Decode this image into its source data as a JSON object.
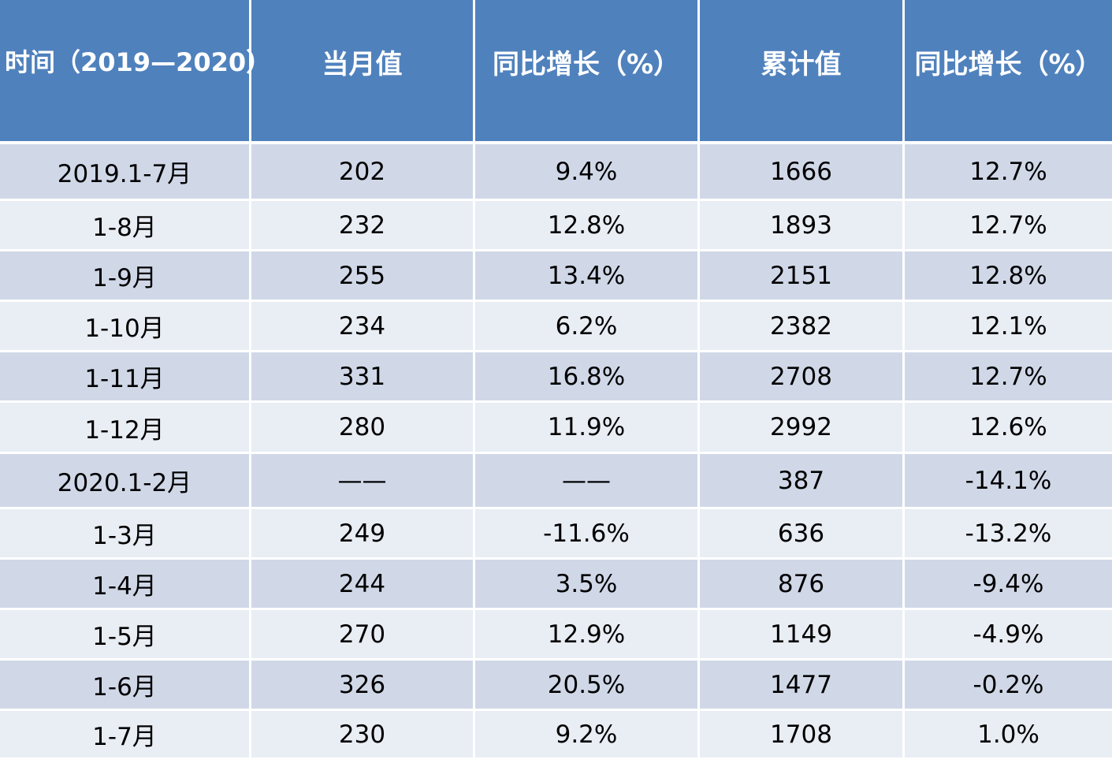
{
  "table": {
    "headers": [
      "时间（2019—2020）",
      "当月值",
      "同比增长（%）",
      "累计值",
      "同比增长（%）"
    ],
    "rows": [
      [
        "2019.1-7月",
        "202",
        "9.4%",
        "1666",
        "12.7%"
      ],
      [
        "1-8月",
        "232",
        "12.8%",
        "1893",
        "12.7%"
      ],
      [
        "1-9月",
        "255",
        "13.4%",
        "2151",
        "12.8%"
      ],
      [
        "1-10月",
        "234",
        "6.2%",
        "2382",
        "12.1%"
      ],
      [
        "1-11月",
        "331",
        "16.8%",
        "2708",
        "12.7%"
      ],
      [
        "1-12月",
        "280",
        "11.9%",
        "2992",
        "12.6%"
      ],
      [
        "2020.1-2月",
        "——",
        "——",
        "387",
        "-14.1%"
      ],
      [
        "1-3月",
        "249",
        "-11.6%",
        "636",
        "-13.2%"
      ],
      [
        "1-4月",
        "244",
        "3.5%",
        "876",
        "-9.4%"
      ],
      [
        "1-5月",
        "270",
        "12.9%",
        "1149",
        "-4.9%"
      ],
      [
        "1-6月",
        "326",
        "20.5%",
        "1477",
        "-0.2%"
      ],
      [
        "1-7月",
        "230",
        "9.2%",
        "1708",
        "1.0%"
      ]
    ]
  },
  "colors": {
    "header_bg": "#4f81bd",
    "row_dark": "#d0d8e8",
    "row_light": "#e9edf4"
  }
}
